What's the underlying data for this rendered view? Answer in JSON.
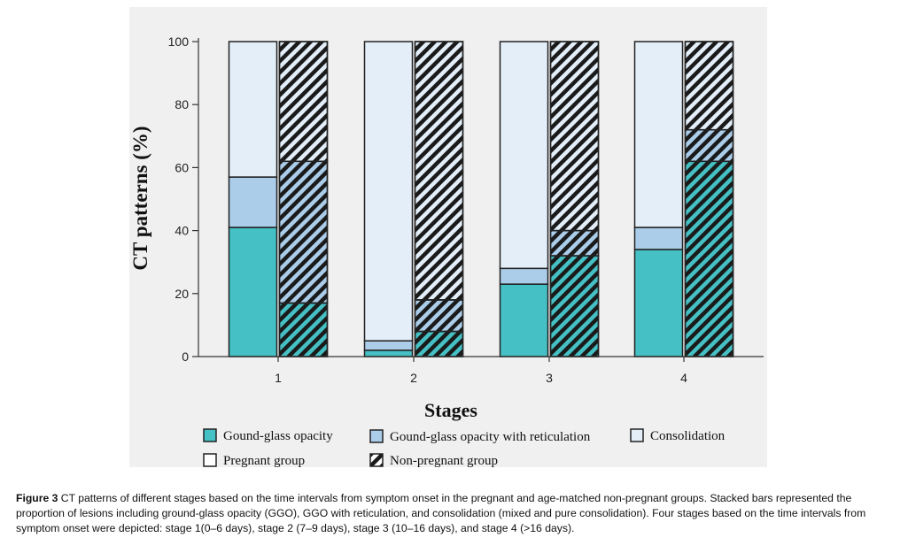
{
  "chart_data": {
    "type": "bar",
    "stacked": true,
    "title": "",
    "xlabel": "Stages",
    "ylabel": "CT patterns (%)",
    "ylim": [
      0,
      100
    ],
    "yticks": [
      "0",
      "20",
      "40",
      "60",
      "80",
      "100"
    ],
    "categories": [
      "1",
      "2",
      "3",
      "4"
    ],
    "groups": [
      {
        "name": "Pregnant group",
        "series": [
          {
            "name": "Gound-glass opacity",
            "values": [
              41,
              2,
              23,
              34
            ]
          },
          {
            "name": "Gound-glass opacity with reticulation",
            "values": [
              16,
              3,
              5,
              7
            ]
          },
          {
            "name": "Consolidation",
            "values": [
              43,
              95,
              72,
              59
            ]
          }
        ]
      },
      {
        "name": "Non-pregnant group",
        "series": [
          {
            "name": "Gound-glass opacity",
            "values": [
              17,
              8,
              32,
              62
            ]
          },
          {
            "name": "Gound-glass opacity with reticulation",
            "values": [
              45,
              10,
              8,
              10
            ]
          },
          {
            "name": "Consolidation",
            "values": [
              38,
              82,
              60,
              28
            ]
          }
        ]
      }
    ],
    "colors": {
      "Gound-glass opacity": "#45c0c4",
      "Gound-glass opacity with reticulation": "#abcdea",
      "Consolidation": "#e3eef9"
    },
    "legend": [
      {
        "label": "Gound-glass opacity",
        "swatch": "ggo"
      },
      {
        "label": "Gound-glass opacity with reticulation",
        "swatch": "ggor"
      },
      {
        "label": "Consolidation",
        "swatch": "cons"
      },
      {
        "label": "Pregnant group",
        "swatch": "pregnant"
      },
      {
        "label": "Non-pregnant group",
        "swatch": "nonpregnant"
      }
    ],
    "legend_position": "bottom"
  },
  "caption": {
    "label": "Figure 3",
    "text": " CT patterns of different stages based on the time intervals from symptom onset in the pregnant and age-matched non-pregnant groups. Stacked bars represented the proportion of lesions including ground-glass opacity (GGO), GGO with reticulation, and consolidation (mixed and pure consolidation). Four stages based on the time intervals from symptom onset were depicted: stage 1(0–6 days), stage 2 (7–9 days), stage 3 (10–16 days), and stage 4 (>16 days)."
  }
}
